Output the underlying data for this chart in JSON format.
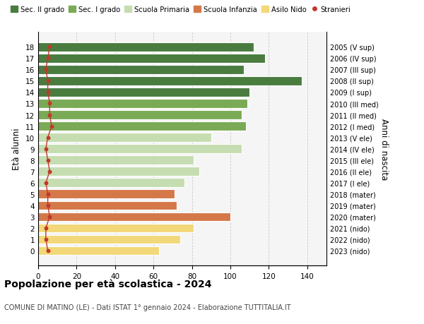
{
  "ages": [
    18,
    17,
    16,
    15,
    14,
    13,
    12,
    11,
    10,
    9,
    8,
    7,
    6,
    5,
    4,
    3,
    2,
    1,
    0
  ],
  "values": [
    112,
    118,
    107,
    137,
    110,
    109,
    106,
    108,
    90,
    106,
    81,
    84,
    76,
    71,
    72,
    100,
    81,
    74,
    63
  ],
  "stranieri": [
    6,
    5,
    4,
    5,
    5,
    6,
    6,
    7,
    5,
    4,
    5,
    6,
    4,
    5,
    5,
    6,
    4,
    4,
    5
  ],
  "right_labels": [
    "2005 (V sup)",
    "2006 (IV sup)",
    "2007 (III sup)",
    "2008 (II sup)",
    "2009 (I sup)",
    "2010 (III med)",
    "2011 (II med)",
    "2012 (I med)",
    "2013 (V ele)",
    "2014 (IV ele)",
    "2015 (III ele)",
    "2016 (II ele)",
    "2017 (I ele)",
    "2018 (mater)",
    "2019 (mater)",
    "2020 (mater)",
    "2021 (nido)",
    "2022 (nido)",
    "2023 (nido)"
  ],
  "bar_colors": [
    "#4a7c3f",
    "#4a7c3f",
    "#4a7c3f",
    "#4a7c3f",
    "#4a7c3f",
    "#7aaa55",
    "#7aaa55",
    "#7aaa55",
    "#c5ddb0",
    "#c5ddb0",
    "#c5ddb0",
    "#c5ddb0",
    "#c5ddb0",
    "#d4784a",
    "#d4784a",
    "#d4784a",
    "#f2d878",
    "#f2d878",
    "#f2d878"
  ],
  "legend_labels": [
    "Sec. II grado",
    "Sec. I grado",
    "Scuola Primaria",
    "Scuola Infanzia",
    "Asilo Nido",
    "Stranieri"
  ],
  "legend_colors": [
    "#4a7c3f",
    "#7aaa55",
    "#c5ddb0",
    "#d4784a",
    "#f2d878",
    "#c0392b"
  ],
  "ylabel": "Età alunni",
  "right_ylabel": "Anni di nascita",
  "title": "Popolazione per età scolastica - 2024",
  "subtitle": "COMUNE DI MATINO (LE) - Dati ISTAT 1° gennaio 2024 - Elaborazione TUTTITALIA.IT",
  "xlim": [
    0,
    150
  ],
  "xticks": [
    0,
    20,
    40,
    60,
    80,
    100,
    120,
    140
  ],
  "dot_color": "#c0392b",
  "line_color": "#c0392b",
  "bg_color": "#f5f5f5",
  "grid_color": "#cccccc"
}
